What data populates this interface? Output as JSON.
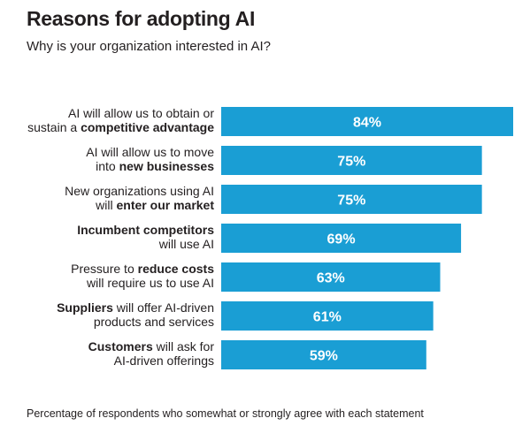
{
  "title": "Reasons for adopting AI",
  "subtitle": "Why is your organization interested in AI?",
  "note": "Percentage of respondents who somewhat or strongly agree with each statement",
  "colors": {
    "bar": "#1a9ed4",
    "text": "#231f20",
    "bar_text": "#ffffff"
  },
  "chart_data": {
    "type": "bar",
    "orientation": "horizontal",
    "title": "Reasons for adopting AI",
    "subtitle": "Why is your organization interested in AI?",
    "categories": [
      "AI will allow us to obtain or sustain a competitive advantage",
      "AI will allow us to move into new businesses",
      "New organizations using AI will enter our market",
      "Incumbent competitors will use AI",
      "Pressure to reduce costs will require us to use AI",
      "Suppliers will offer AI-driven products and services",
      "Customers will ask for AI-driven offerings"
    ],
    "category_lines": [
      [
        [
          {
            "t": "AI will allow us to obtain or",
            "b": false
          }
        ],
        [
          {
            "t": "sustain a ",
            "b": false
          },
          {
            "t": "competitive advantage",
            "b": true
          }
        ]
      ],
      [
        [
          {
            "t": "AI will allow us to move",
            "b": false
          }
        ],
        [
          {
            "t": "into ",
            "b": false
          },
          {
            "t": "new businesses",
            "b": true
          }
        ]
      ],
      [
        [
          {
            "t": "New organizations using AI",
            "b": false
          }
        ],
        [
          {
            "t": "will ",
            "b": false
          },
          {
            "t": "enter our market",
            "b": true
          }
        ]
      ],
      [
        [
          {
            "t": "Incumbent competitors",
            "b": true
          }
        ],
        [
          {
            "t": "will use AI",
            "b": false
          }
        ]
      ],
      [
        [
          {
            "t": "Pressure to ",
            "b": false
          },
          {
            "t": "reduce costs",
            "b": true
          }
        ],
        [
          {
            "t": "will require us to use AI",
            "b": false
          }
        ]
      ],
      [
        [
          {
            "t": "Suppliers",
            "b": true
          },
          {
            "t": " will offer AI-driven",
            "b": false
          }
        ],
        [
          {
            "t": "products and services",
            "b": false
          }
        ]
      ],
      [
        [
          {
            "t": "Customers",
            "b": true
          },
          {
            "t": " will ask for",
            "b": false
          }
        ],
        [
          {
            "t": "AI-driven offerings",
            "b": false
          }
        ]
      ]
    ],
    "values": [
      84,
      75,
      75,
      69,
      63,
      61,
      59
    ],
    "value_labels": [
      "84%",
      "75%",
      "75%",
      "69%",
      "63%",
      "61%",
      "59%"
    ],
    "unit": "%",
    "xlim": [
      0,
      84
    ],
    "grid": false,
    "legend": "none"
  }
}
